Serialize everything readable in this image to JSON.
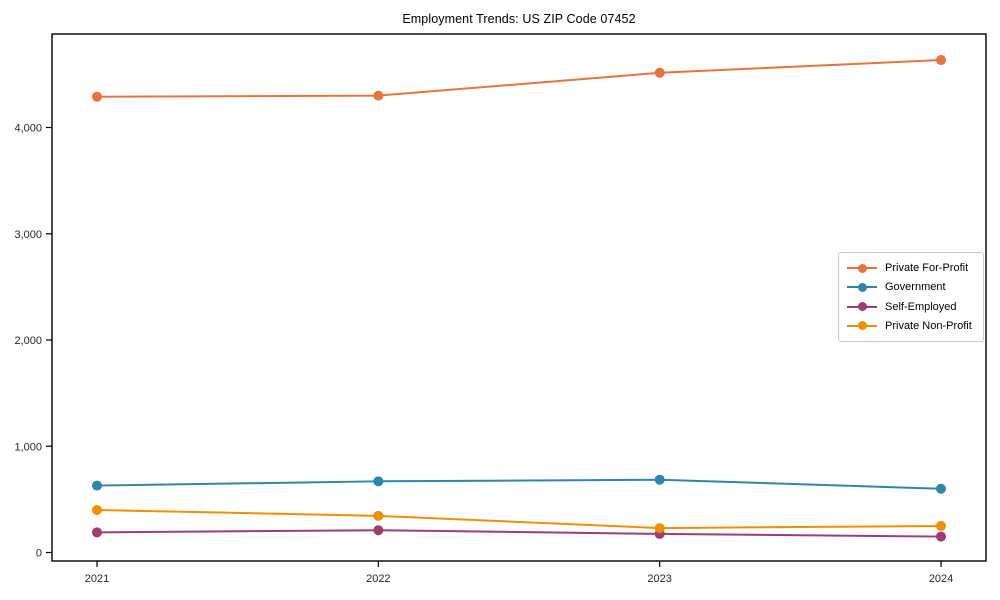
{
  "figure": {
    "title": "Employment Trends: US ZIP Code 07452"
  },
  "chart_data": {
    "type": "line",
    "title": "Employment Trends: US ZIP Code 07452",
    "xlabel": "",
    "ylabel": "",
    "x": [
      2021,
      2022,
      2023,
      2024
    ],
    "xtick_labels": [
      "2021",
      "2022",
      "2023",
      "2024"
    ],
    "yticks": [
      0,
      1000,
      2000,
      3000,
      4000
    ],
    "ytick_labels": [
      "0",
      "1,000",
      "2,000",
      "3,000",
      "4,000"
    ],
    "ylim": [
      -80,
      4880
    ],
    "grid": false,
    "marker": "circle",
    "legend_position": "center-right",
    "axis_color": "#000000",
    "tick_label_color": "#262626",
    "legend_border_color": "#c9c9c9",
    "series": [
      {
        "name": "Private For-Profit",
        "color": "#E8743B",
        "values": [
          4290,
          4300,
          4515,
          4635
        ]
      },
      {
        "name": "Government",
        "color": "#2E86AB",
        "values": [
          630,
          670,
          685,
          600
        ]
      },
      {
        "name": "Self-Employed",
        "color": "#A23B72",
        "values": [
          190,
          210,
          175,
          150
        ]
      },
      {
        "name": "Private Non-Profit",
        "color": "#F18F01",
        "values": [
          400,
          345,
          230,
          250
        ]
      }
    ]
  }
}
